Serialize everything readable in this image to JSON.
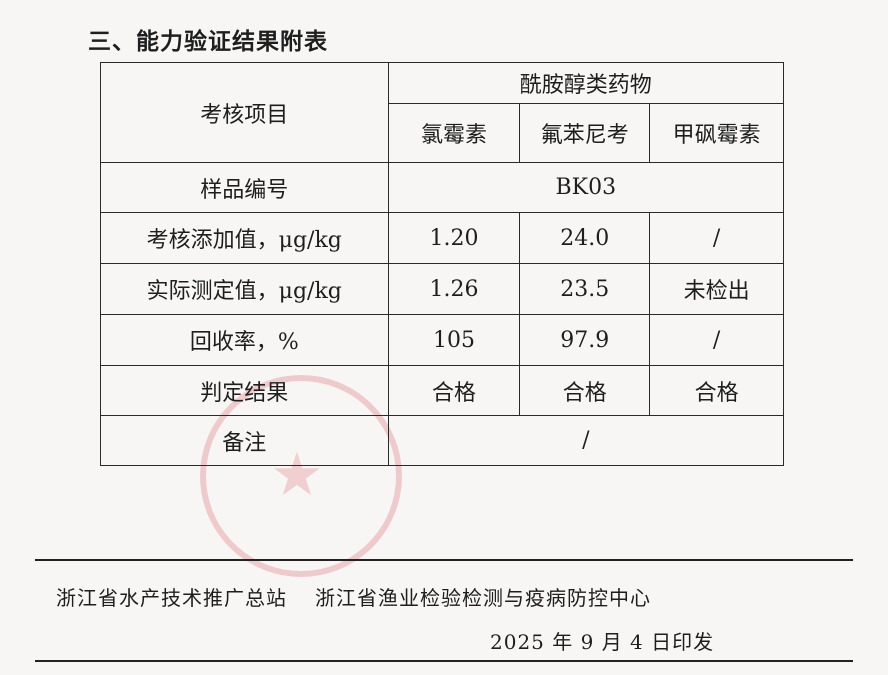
{
  "heading": "三、能力验证结果附表",
  "table": {
    "item_header": "考核项目",
    "group_header": "酰胺醇类药物",
    "drugs": [
      "氯霉素",
      "氟苯尼考",
      "甲砜霉素"
    ],
    "sample_label": "样品编号",
    "sample_value": "BK03",
    "rows": [
      {
        "label": "考核添加值，μg/kg",
        "values": [
          "1.20",
          "24.0",
          "/"
        ]
      },
      {
        "label": "实际测定值，μg/kg",
        "values": [
          "1.26",
          "23.5",
          "未检出"
        ]
      },
      {
        "label": "回收率，%",
        "values": [
          "105",
          "97.9",
          "/"
        ]
      },
      {
        "label": "判定结果",
        "values": [
          "合格",
          "合格",
          "合格"
        ]
      }
    ],
    "remark_label": "备注",
    "remark_value": "/"
  },
  "footer": {
    "org1": "浙江省水产技术推广总站",
    "org2": "浙江省渔业检验检测与疫病防控中心",
    "date": "2025 年 9 月 4 日印发"
  },
  "stamp_color": "#dc5a64"
}
